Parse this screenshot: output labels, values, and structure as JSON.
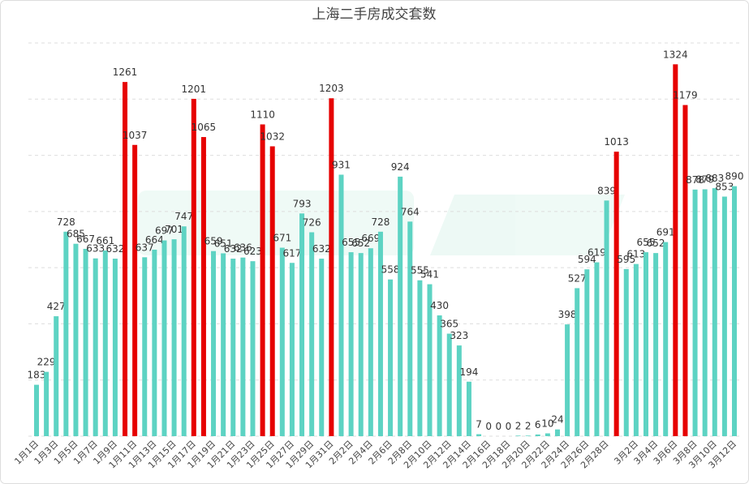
{
  "chart_data": {
    "type": "bar",
    "title": "上海二手房成交套数",
    "categories": [
      "1月1日",
      null,
      "1月3日",
      null,
      "1月5日",
      null,
      "1月7日",
      null,
      "1月9日",
      null,
      "1月11日",
      null,
      "1月13日",
      null,
      "1月15日",
      null,
      "1月17日",
      null,
      "1月19日",
      null,
      "1月21日",
      null,
      "1月23日",
      null,
      "1月25日",
      null,
      "1月27日",
      null,
      "1月29日",
      null,
      "1月31日",
      null,
      "2月2日",
      null,
      "2月4日",
      null,
      "2月6日",
      null,
      "2月8日",
      null,
      "2月10日",
      null,
      "2月12日",
      null,
      "2月14日",
      null,
      "2月16日",
      null,
      "2月18日",
      null,
      "2月20日",
      null,
      "2月22日",
      null,
      "2月24日",
      null,
      "2月26日",
      null,
      "2月28日",
      null,
      null,
      "3月2日",
      null,
      "3月4日",
      null,
      "3月6日",
      null,
      "3月8日",
      null,
      "3月10日",
      null,
      "3月12日"
    ],
    "values": [
      183,
      229,
      427,
      728,
      685,
      667,
      633,
      661,
      632,
      1261,
      1037,
      637,
      664,
      697,
      701,
      747,
      1201,
      1065,
      659,
      651,
      632,
      636,
      623,
      1110,
      1032,
      671,
      617,
      793,
      726,
      632,
      1203,
      931,
      655,
      652,
      669,
      728,
      558,
      924,
      764,
      555,
      541,
      430,
      365,
      323,
      194,
      7,
      0,
      0,
      0,
      2,
      2,
      6,
      10,
      24,
      398,
      527,
      594,
      619,
      839,
      1013,
      595,
      613,
      655,
      652,
      691,
      1324,
      1179,
      878,
      879,
      883,
      853,
      890
    ],
    "color": "#5dd3c3",
    "highlight_color": "#e60000",
    "highlight": [
      9,
      10,
      16,
      17,
      23,
      24,
      30,
      59,
      65,
      66
    ],
    "ylim": [
      0,
      1400
    ],
    "yticks": [
      0,
      200,
      400,
      600,
      800,
      1000,
      1200,
      1400
    ],
    "ytick_labels": false,
    "grid": true
  }
}
